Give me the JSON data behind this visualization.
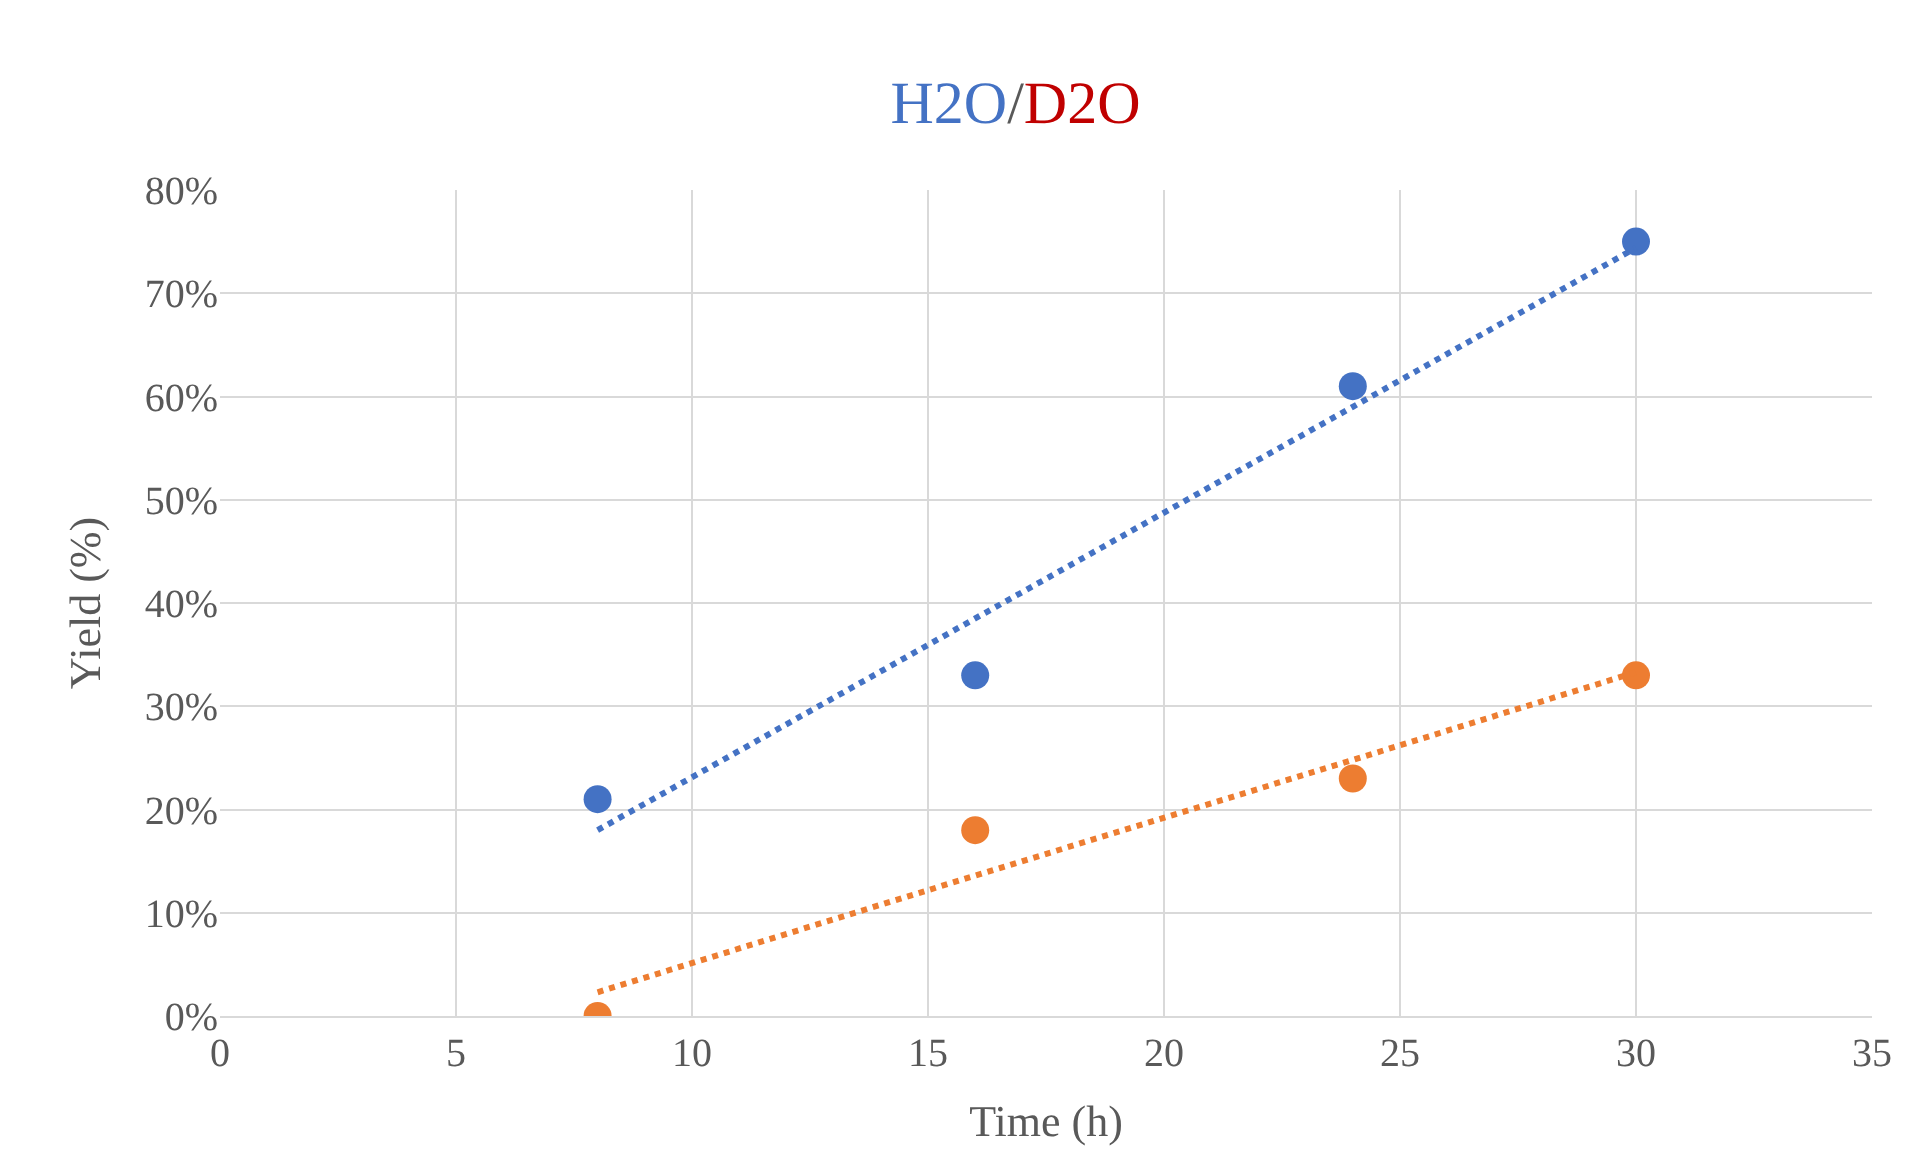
{
  "chart_data": {
    "type": "scatter",
    "title": "H2O/D2O",
    "xlabel": "Time (h)",
    "ylabel": "Yield (%)",
    "x": [
      8,
      16,
      24,
      30
    ],
    "series": [
      {
        "color": "#4472c4",
        "values": [
          21,
          33,
          61,
          75
        ],
        "marker": "circle"
      },
      {
        "color": "#ed7d31",
        "values": [
          0,
          18,
          23,
          33
        ],
        "marker": "circle"
      },
      {
        "type": "line",
        "color": "#4472c4",
        "values": [
          18,
          38.5,
          59,
          74.4
        ],
        "line_style": "dotted",
        "marker": "none"
      },
      {
        "type": "line",
        "color": "#ed7d31",
        "values": [
          2.3,
          13.6,
          24.8,
          33.3
        ],
        "line_style": "dotted",
        "marker": "none"
      }
    ],
    "xlim": [
      0,
      35
    ],
    "xticks": [
      0,
      5,
      10,
      15,
      20,
      25,
      30,
      35
    ],
    "ylim": [
      0,
      80
    ],
    "yticks": [
      {
        "value": 0,
        "label": "0%"
      },
      {
        "value": 10,
        "label": "10%"
      },
      {
        "value": 20,
        "label": "20%"
      },
      {
        "value": 30,
        "label": "30%"
      },
      {
        "value": 40,
        "label": "40%"
      },
      {
        "value": 50,
        "label": "50%"
      },
      {
        "value": 60,
        "label": "60%"
      },
      {
        "value": 70,
        "label": "70%"
      },
      {
        "value": 80,
        "label": "80%"
      }
    ],
    "grid": true
  }
}
